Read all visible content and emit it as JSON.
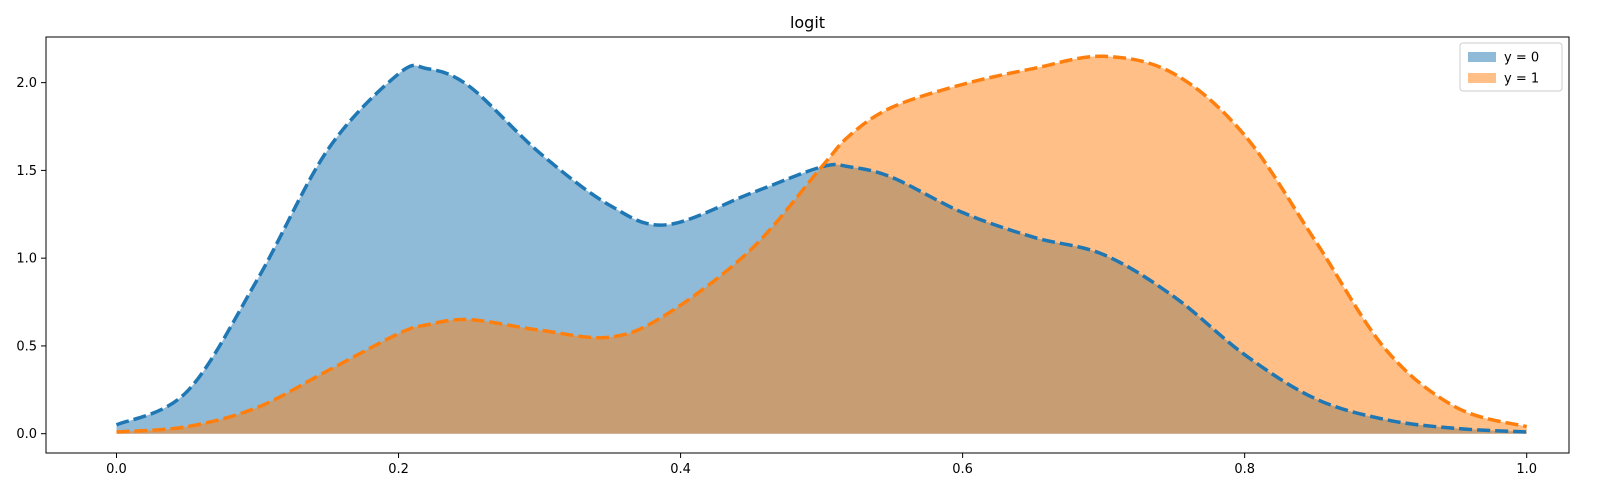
{
  "chart_data": {
    "type": "area",
    "title": "logit",
    "xlabel": "",
    "ylabel": "",
    "xlim": [
      -0.05,
      1.03
    ],
    "ylim": [
      -0.11,
      2.26
    ],
    "xticks": [
      0.0,
      0.2,
      0.4,
      0.6,
      0.8,
      1.0
    ],
    "xtick_labels": [
      "0.0",
      "0.2",
      "0.4",
      "0.6",
      "0.8",
      "1.0"
    ],
    "yticks": [
      0.0,
      0.5,
      1.0,
      1.5,
      2.0
    ],
    "ytick_labels": [
      "0.0",
      "0.5",
      "1.0",
      "1.5",
      "2.0"
    ],
    "grid": false,
    "legend_position": "top-right",
    "x": [
      0.0,
      0.05,
      0.1,
      0.15,
      0.2,
      0.22,
      0.25,
      0.3,
      0.35,
      0.39,
      0.45,
      0.5,
      0.52,
      0.55,
      0.6,
      0.65,
      0.7,
      0.75,
      0.8,
      0.85,
      0.9,
      0.95,
      1.0
    ],
    "series": [
      {
        "name": "y = 0",
        "fill_color": "#8fb9db",
        "line_color": "#1f77b4",
        "values": [
          0.05,
          0.24,
          0.88,
          1.62,
          2.05,
          2.08,
          1.98,
          1.6,
          1.3,
          1.19,
          1.37,
          1.52,
          1.52,
          1.46,
          1.26,
          1.12,
          1.02,
          0.78,
          0.45,
          0.2,
          0.08,
          0.03,
          0.01
        ]
      },
      {
        "name": "y = 1",
        "fill_color": "#ffbb80",
        "line_color": "#ff7f0e",
        "values": [
          0.01,
          0.04,
          0.15,
          0.36,
          0.57,
          0.62,
          0.65,
          0.59,
          0.55,
          0.68,
          1.05,
          1.52,
          1.7,
          1.86,
          1.99,
          2.08,
          2.15,
          2.05,
          1.7,
          1.1,
          0.48,
          0.15,
          0.04
        ]
      }
    ]
  }
}
